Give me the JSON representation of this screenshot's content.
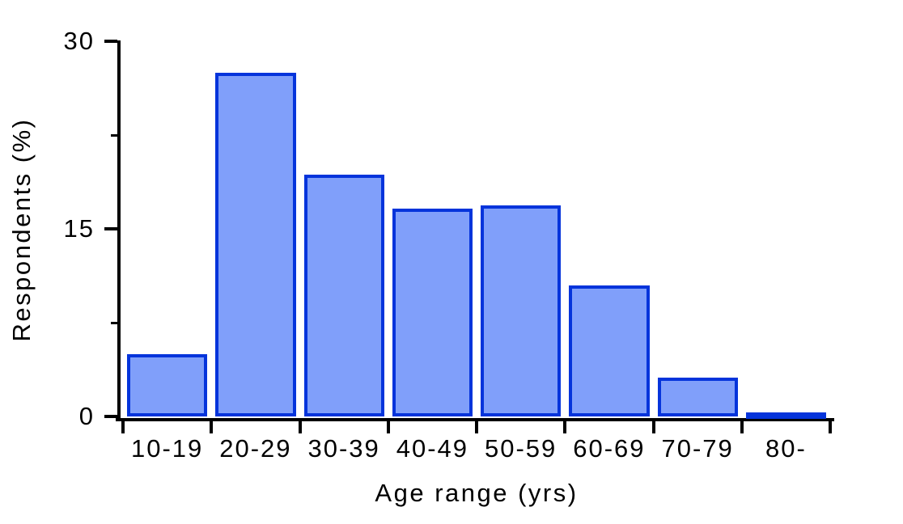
{
  "chart_data": {
    "type": "bar",
    "title": "",
    "xlabel": "Age range (yrs)",
    "ylabel": "Respondents (%)",
    "categories": [
      "10-19",
      "20-29",
      "30-39",
      "40-49",
      "50-59",
      "60-69",
      "70-79",
      "80-"
    ],
    "values": [
      5,
      27.5,
      19.3,
      16.6,
      16.9,
      10.5,
      3.1,
      0.3
    ],
    "ylim": [
      0,
      30
    ],
    "yticks_major": [
      0,
      15,
      30
    ],
    "yticks_minor": [
      7.5,
      22.5
    ],
    "grid": false,
    "legend": false,
    "bar_fill_color": "#809FFA",
    "bar_border_color": "#0534DB",
    "axis_color": "#000000"
  }
}
